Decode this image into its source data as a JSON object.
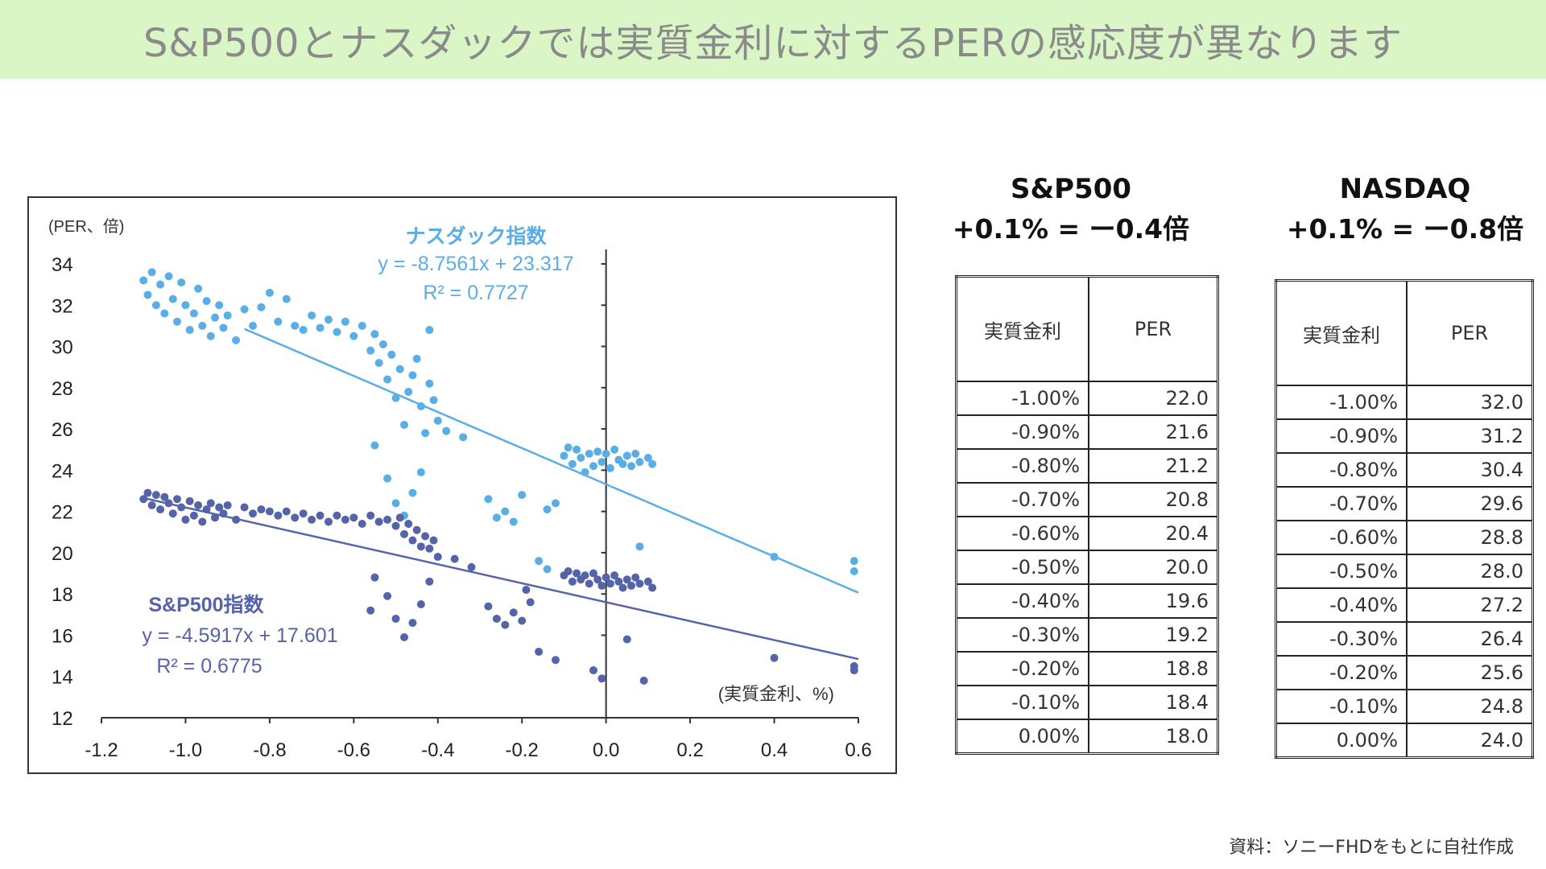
{
  "banner": {
    "title": "S&P500とナスダックでは実質金利に対するPERの感応度が異なります"
  },
  "chart_data": {
    "type": "scatter",
    "ylabel": "(PER、倍)",
    "xlabel": "(実質金利、%)",
    "xlim": [
      -1.2,
      0.6
    ],
    "ylim": [
      12,
      34
    ],
    "x_ticks": [
      "-1.2",
      "-1.0",
      "-0.8",
      "-0.6",
      "-0.4",
      "-0.2",
      "0.0",
      "0.2",
      "0.4",
      "0.6"
    ],
    "y_ticks": [
      "34",
      "32",
      "30",
      "28",
      "26",
      "24",
      "22",
      "20",
      "18",
      "16",
      "14",
      "12"
    ],
    "series": [
      {
        "name": "ナスダック指数",
        "color": "#5aaee8",
        "equation": "y = -8.7561x + 23.317",
        "r2": "R² = 0.7727",
        "trend": {
          "slope": -8.7561,
          "intercept": 23.317,
          "x_range": [
            -0.86,
            0.6
          ]
        },
        "points": [
          [
            -1.1,
            33.2
          ],
          [
            -1.09,
            32.5
          ],
          [
            -1.08,
            33.6
          ],
          [
            -1.07,
            32.0
          ],
          [
            -1.06,
            33.0
          ],
          [
            -1.05,
            31.6
          ],
          [
            -1.04,
            33.4
          ],
          [
            -1.03,
            32.3
          ],
          [
            -1.02,
            31.2
          ],
          [
            -1.01,
            33.1
          ],
          [
            -1.0,
            32.0
          ],
          [
            -0.99,
            30.8
          ],
          [
            -0.98,
            31.6
          ],
          [
            -0.97,
            32.8
          ],
          [
            -0.96,
            31.0
          ],
          [
            -0.95,
            32.2
          ],
          [
            -0.94,
            30.5
          ],
          [
            -0.93,
            31.4
          ],
          [
            -0.92,
            32.0
          ],
          [
            -0.91,
            30.9
          ],
          [
            -0.9,
            31.5
          ],
          [
            -0.88,
            30.3
          ],
          [
            -0.86,
            31.8
          ],
          [
            -0.84,
            31.0
          ],
          [
            -0.82,
            31.9
          ],
          [
            -0.8,
            32.6
          ],
          [
            -0.78,
            31.2
          ],
          [
            -0.76,
            32.3
          ],
          [
            -0.74,
            31.0
          ],
          [
            -0.72,
            30.8
          ],
          [
            -0.7,
            31.5
          ],
          [
            -0.68,
            30.9
          ],
          [
            -0.66,
            31.3
          ],
          [
            -0.64,
            30.7
          ],
          [
            -0.62,
            31.2
          ],
          [
            -0.6,
            30.5
          ],
          [
            -0.58,
            31.0
          ],
          [
            -0.56,
            29.8
          ],
          [
            -0.55,
            30.6
          ],
          [
            -0.54,
            29.2
          ],
          [
            -0.53,
            30.1
          ],
          [
            -0.52,
            28.4
          ],
          [
            -0.51,
            29.6
          ],
          [
            -0.5,
            27.5
          ],
          [
            -0.49,
            28.9
          ],
          [
            -0.48,
            26.2
          ],
          [
            -0.47,
            27.8
          ],
          [
            -0.46,
            28.6
          ],
          [
            -0.45,
            29.4
          ],
          [
            -0.44,
            27.1
          ],
          [
            -0.43,
            25.8
          ],
          [
            -0.42,
            28.2
          ],
          [
            -0.42,
            30.8
          ],
          [
            -0.41,
            27.4
          ],
          [
            -0.4,
            26.4
          ],
          [
            -0.38,
            25.9
          ],
          [
            -0.55,
            25.2
          ],
          [
            -0.52,
            23.6
          ],
          [
            -0.5,
            22.4
          ],
          [
            -0.48,
            21.8
          ],
          [
            -0.46,
            22.9
          ],
          [
            -0.44,
            23.9
          ],
          [
            -0.34,
            25.6
          ],
          [
            -0.28,
            22.6
          ],
          [
            -0.26,
            21.7
          ],
          [
            -0.24,
            22.0
          ],
          [
            -0.22,
            21.5
          ],
          [
            -0.2,
            22.8
          ],
          [
            -0.16,
            19.6
          ],
          [
            -0.14,
            22.1
          ],
          [
            -0.12,
            22.4
          ],
          [
            -0.1,
            24.7
          ],
          [
            -0.09,
            25.1
          ],
          [
            -0.08,
            24.3
          ],
          [
            -0.07,
            25.0
          ],
          [
            -0.06,
            24.6
          ],
          [
            -0.05,
            23.9
          ],
          [
            -0.04,
            24.8
          ],
          [
            -0.03,
            24.2
          ],
          [
            -0.02,
            24.9
          ],
          [
            -0.01,
            24.4
          ],
          [
            0.0,
            24.8
          ],
          [
            0.01,
            24.1
          ],
          [
            0.02,
            25.0
          ],
          [
            0.03,
            24.5
          ],
          [
            0.04,
            24.3
          ],
          [
            0.05,
            24.7
          ],
          [
            0.06,
            24.2
          ],
          [
            0.07,
            24.8
          ],
          [
            0.08,
            24.4
          ],
          [
            0.1,
            24.6
          ],
          [
            0.11,
            24.3
          ],
          [
            0.08,
            20.3
          ],
          [
            -0.14,
            19.2
          ],
          [
            0.4,
            19.8
          ],
          [
            0.59,
            19.1
          ],
          [
            0.59,
            19.6
          ]
        ]
      },
      {
        "name": "S&P500指数",
        "color": "#5563a8",
        "equation": "y = -4.5917x + 17.601",
        "r2": "R² = 0.6775",
        "trend": {
          "slope": -4.5917,
          "intercept": 17.601,
          "x_range": [
            -1.1,
            0.6
          ]
        },
        "points": [
          [
            -1.1,
            22.6
          ],
          [
            -1.09,
            22.9
          ],
          [
            -1.08,
            22.3
          ],
          [
            -1.07,
            22.8
          ],
          [
            -1.06,
            22.1
          ],
          [
            -1.05,
            22.7
          ],
          [
            -1.04,
            22.4
          ],
          [
            -1.03,
            21.9
          ],
          [
            -1.02,
            22.6
          ],
          [
            -1.01,
            22.2
          ],
          [
            -1.0,
            21.6
          ],
          [
            -0.99,
            22.5
          ],
          [
            -0.98,
            21.8
          ],
          [
            -0.97,
            22.3
          ],
          [
            -0.96,
            21.5
          ],
          [
            -0.95,
            22.1
          ],
          [
            -0.94,
            22.4
          ],
          [
            -0.93,
            21.7
          ],
          [
            -0.92,
            22.2
          ],
          [
            -0.91,
            21.9
          ],
          [
            -0.9,
            22.3
          ],
          [
            -0.88,
            21.6
          ],
          [
            -0.86,
            22.2
          ],
          [
            -0.84,
            21.9
          ],
          [
            -0.82,
            22.1
          ],
          [
            -0.8,
            22.0
          ],
          [
            -0.78,
            21.8
          ],
          [
            -0.76,
            22.0
          ],
          [
            -0.74,
            21.7
          ],
          [
            -0.72,
            21.9
          ],
          [
            -0.7,
            21.6
          ],
          [
            -0.68,
            21.8
          ],
          [
            -0.66,
            21.5
          ],
          [
            -0.64,
            21.8
          ],
          [
            -0.62,
            21.6
          ],
          [
            -0.6,
            21.7
          ],
          [
            -0.58,
            21.4
          ],
          [
            -0.56,
            21.8
          ],
          [
            -0.54,
            21.5
          ],
          [
            -0.52,
            21.6
          ],
          [
            -0.5,
            21.3
          ],
          [
            -0.49,
            21.7
          ],
          [
            -0.48,
            20.9
          ],
          [
            -0.47,
            21.4
          ],
          [
            -0.46,
            20.6
          ],
          [
            -0.45,
            21.1
          ],
          [
            -0.44,
            20.3
          ],
          [
            -0.43,
            20.8
          ],
          [
            -0.42,
            20.2
          ],
          [
            -0.41,
            20.6
          ],
          [
            -0.4,
            19.8
          ],
          [
            -0.55,
            18.8
          ],
          [
            -0.52,
            17.9
          ],
          [
            -0.5,
            16.8
          ],
          [
            -0.48,
            15.9
          ],
          [
            -0.46,
            16.6
          ],
          [
            -0.44,
            17.5
          ],
          [
            -0.42,
            18.6
          ],
          [
            -0.56,
            17.2
          ],
          [
            -0.36,
            19.7
          ],
          [
            -0.32,
            19.3
          ],
          [
            -0.28,
            17.4
          ],
          [
            -0.26,
            16.8
          ],
          [
            -0.24,
            16.5
          ],
          [
            -0.22,
            17.1
          ],
          [
            -0.2,
            16.7
          ],
          [
            -0.19,
            18.2
          ],
          [
            -0.18,
            17.6
          ],
          [
            -0.16,
            15.2
          ],
          [
            -0.12,
            14.8
          ],
          [
            -0.1,
            18.9
          ],
          [
            -0.09,
            19.1
          ],
          [
            -0.08,
            18.6
          ],
          [
            -0.07,
            19.0
          ],
          [
            -0.06,
            18.7
          ],
          [
            -0.05,
            18.9
          ],
          [
            -0.04,
            18.5
          ],
          [
            -0.03,
            19.0
          ],
          [
            -0.02,
            18.7
          ],
          [
            -0.01,
            18.4
          ],
          [
            0.0,
            18.8
          ],
          [
            0.01,
            18.5
          ],
          [
            0.02,
            18.9
          ],
          [
            0.03,
            18.6
          ],
          [
            0.04,
            18.3
          ],
          [
            0.05,
            18.7
          ],
          [
            0.06,
            18.4
          ],
          [
            0.07,
            18.8
          ],
          [
            0.08,
            18.5
          ],
          [
            0.1,
            18.6
          ],
          [
            0.11,
            18.3
          ],
          [
            -0.03,
            14.3
          ],
          [
            -0.01,
            13.9
          ],
          [
            0.05,
            15.8
          ],
          [
            0.09,
            13.8
          ],
          [
            0.4,
            14.9
          ],
          [
            0.59,
            14.3
          ],
          [
            0.59,
            14.5
          ]
        ]
      }
    ]
  },
  "sp500": {
    "name": "S&P500",
    "rule": "+0.1% = ー0.4倍",
    "headers": [
      "実質金利",
      "PER"
    ],
    "rows": [
      [
        "-1.00%",
        "22.0"
      ],
      [
        "-0.90%",
        "21.6"
      ],
      [
        "-0.80%",
        "21.2"
      ],
      [
        "-0.70%",
        "20.8"
      ],
      [
        "-0.60%",
        "20.4"
      ],
      [
        "-0.50%",
        "20.0"
      ],
      [
        "-0.40%",
        "19.6"
      ],
      [
        "-0.30%",
        "19.2"
      ],
      [
        "-0.20%",
        "18.8"
      ],
      [
        "-0.10%",
        "18.4"
      ],
      [
        "0.00%",
        "18.0"
      ]
    ]
  },
  "nasdaq": {
    "name": "NASDAQ",
    "rule": "+0.1% = ー0.8倍",
    "headers": [
      "実質金利",
      "PER"
    ],
    "rows": [
      [
        "-1.00%",
        "32.0"
      ],
      [
        "-0.90%",
        "31.2"
      ],
      [
        "-0.80%",
        "30.4"
      ],
      [
        "-0.70%",
        "29.6"
      ],
      [
        "-0.60%",
        "28.8"
      ],
      [
        "-0.50%",
        "28.0"
      ],
      [
        "-0.40%",
        "27.2"
      ],
      [
        "-0.30%",
        "26.4"
      ],
      [
        "-0.20%",
        "25.6"
      ],
      [
        "-0.10%",
        "24.8"
      ],
      [
        "0.00%",
        "24.0"
      ]
    ]
  },
  "source": "資料：ソニーFHDをもとに自社作成"
}
